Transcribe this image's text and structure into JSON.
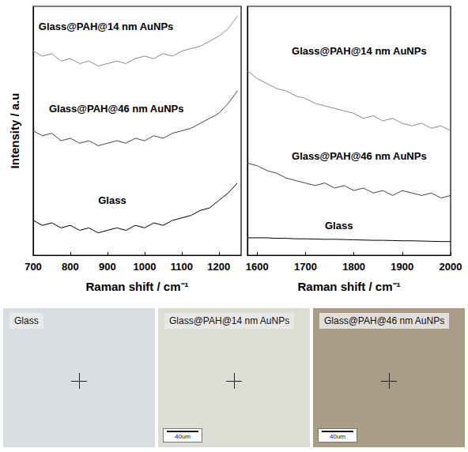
{
  "chart_data": [
    {
      "type": "line",
      "y_label": "Intensity / a.u",
      "x_label": "Raman shift / cm⁻¹",
      "x": [
        700,
        725,
        750,
        775,
        800,
        825,
        850,
        875,
        900,
        925,
        950,
        975,
        1000,
        1025,
        1050,
        1075,
        1100,
        1125,
        1150,
        1175,
        1200,
        1225,
        1250
      ],
      "series": [
        {
          "name": "Glass@PAH@14 nm AuNPs",
          "color": "#8a8a8a",
          "values": [
            82,
            80,
            81,
            78,
            79,
            77,
            78,
            76,
            77,
            78,
            77,
            79,
            80,
            79,
            81,
            80,
            82,
            83,
            84,
            86,
            88,
            91,
            96
          ]
        },
        {
          "name": "Glass@PAH@46 nm AuNPs",
          "color": "#444444",
          "values": [
            50,
            48,
            49,
            46,
            47,
            45,
            46,
            44,
            45,
            46,
            45,
            47,
            46,
            48,
            47,
            49,
            50,
            51,
            53,
            55,
            57,
            61,
            66
          ]
        },
        {
          "name": "Glass",
          "color": "#000000",
          "values": [
            14,
            12,
            13,
            11,
            12,
            10,
            11,
            9,
            10,
            11,
            10,
            12,
            11,
            13,
            12,
            14,
            15,
            16,
            18,
            19,
            22,
            25,
            29
          ]
        }
      ],
      "xlim": [
        700,
        1260
      ],
      "xticks": [
        700,
        800,
        900,
        1000,
        1100,
        1200
      ],
      "ylim": [
        0,
        100
      ],
      "tick_labels": "x",
      "grid": false
    },
    {
      "type": "line",
      "x_label": "Raman shift / cm⁻¹",
      "x": [
        1580,
        1600,
        1620,
        1640,
        1660,
        1680,
        1700,
        1720,
        1740,
        1760,
        1780,
        1800,
        1820,
        1840,
        1860,
        1880,
        1900,
        1920,
        1940,
        1960,
        1980,
        2000
      ],
      "series": [
        {
          "name": "Glass@PAH@14 nm AuNPs",
          "color": "#8a8a8a",
          "values": [
            74,
            71,
            69,
            67,
            66,
            64,
            63,
            61,
            60,
            59,
            58,
            57,
            55,
            56,
            54,
            55,
            53,
            52,
            53,
            51,
            52,
            50
          ]
        },
        {
          "name": "Glass@PAH@46 nm AuNPs",
          "color": "#444444",
          "values": [
            37,
            36,
            34,
            33,
            31,
            30,
            29,
            28,
            29,
            27,
            28,
            26,
            27,
            25,
            26,
            24,
            26,
            25,
            24,
            25,
            23,
            24
          ]
        },
        {
          "name": "Glass",
          "color": "#000000",
          "values": [
            7,
            7,
            7,
            6.8,
            6.8,
            6.6,
            6.6,
            6.5,
            6.4,
            6.4,
            6.3,
            6.2,
            6.1,
            6,
            6,
            5.9,
            5.8,
            5.8,
            5.7,
            5.6,
            5.5,
            5.5
          ]
        }
      ],
      "xlim": [
        1580,
        2000
      ],
      "xticks": [
        1600,
        1700,
        1800,
        1900,
        2000
      ],
      "ylim": [
        0,
        100
      ],
      "tick_labels": "x",
      "grid": false
    }
  ],
  "images": [
    {
      "label": "Glass",
      "color": "#d9dee2"
    },
    {
      "label": "Glass@PAH@14 nm AuNPs",
      "color": "#dcddd3",
      "scale_bar": "40um"
    },
    {
      "label": "Glass@PAH@46 nm AuNPs",
      "color": "#a99d88",
      "scale_bar": "40um"
    }
  ]
}
